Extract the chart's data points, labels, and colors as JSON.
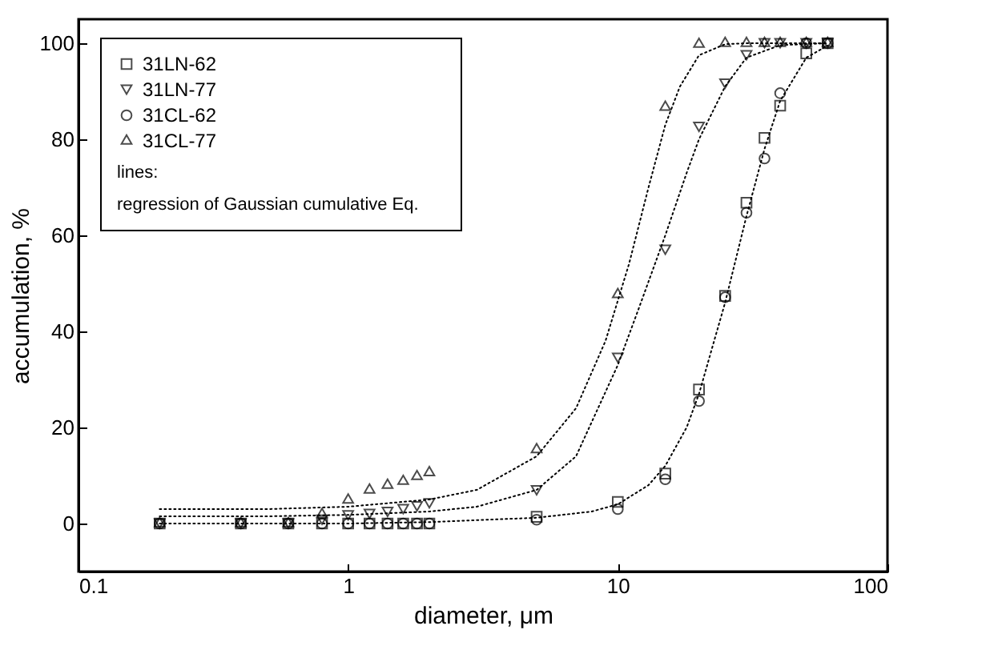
{
  "chart_data": {
    "type": "scatter",
    "xlabel": "diameter, μm",
    "ylabel": "accumulation, %",
    "log": "x",
    "xlim": [
      0.1,
      100
    ],
    "xticks": [
      0.1,
      1,
      10,
      100
    ],
    "ylim": [
      -10,
      105
    ],
    "yticks": [
      0,
      20,
      40,
      60,
      80,
      100
    ],
    "grid": false,
    "legend": "top left",
    "annotations": [
      "lines:",
      "regression of Gaussian cumulative Eq."
    ],
    "series": [
      {
        "name": "31LN-62",
        "color": "#000000",
        "marker": "square",
        "x": [
          0.2,
          0.4,
          0.6,
          0.8,
          1,
          1.2,
          1.4,
          1.6,
          1.8,
          2,
          5,
          10,
          15,
          20,
          25,
          30,
          35,
          40,
          50,
          60
        ],
        "values": [
          0,
          0,
          0,
          0,
          0,
          0,
          0,
          0,
          0,
          0,
          1.4,
          4.5,
          10.4,
          27.9,
          47.4,
          66.8,
          80.3,
          87,
          97.9,
          100
        ]
      },
      {
        "name": "31LN-77",
        "color": "#000000",
        "marker": "triangle-down",
        "x": [
          0.2,
          0.4,
          0.6,
          0.8,
          1,
          1.2,
          1.4,
          1.6,
          1.8,
          2,
          5,
          10,
          15,
          20,
          25,
          30,
          35,
          40,
          50,
          60
        ],
        "values": [
          0,
          0,
          0,
          0.8,
          1.7,
          2,
          2.4,
          3,
          3.6,
          4.2,
          6.9,
          34.5,
          57,
          82.6,
          91.6,
          97.5,
          100,
          100,
          100,
          100
        ]
      },
      {
        "name": "31CL-62",
        "color": "#000000",
        "marker": "circle",
        "x": [
          0.2,
          0.4,
          0.6,
          0.8,
          1,
          1.2,
          1.4,
          1.6,
          1.8,
          2,
          5,
          10,
          15,
          20,
          25,
          30,
          35,
          40,
          50,
          60
        ],
        "values": [
          0,
          0,
          0,
          0,
          0,
          0,
          0,
          0,
          0,
          0,
          0.8,
          3,
          9.2,
          25.5,
          47.1,
          64.7,
          76,
          89.6,
          100,
          100
        ]
      },
      {
        "name": "31CL-77",
        "color": "#000000",
        "marker": "triangle",
        "x": [
          0.2,
          0.4,
          0.6,
          0.8,
          1,
          1.2,
          1.4,
          1.6,
          1.8,
          2,
          5,
          10,
          15,
          20,
          25,
          30,
          35,
          40,
          50,
          60
        ],
        "values": [
          0,
          0,
          0,
          1.9,
          4.9,
          7,
          8,
          8.8,
          9.8,
          10.6,
          15.4,
          47.7,
          86.7,
          99.8,
          100,
          100,
          100,
          100,
          100,
          100
        ]
      },
      {
        "type": "line",
        "color": "#000000",
        "line_style": "dotted",
        "x": [
          0.2,
          0.5,
          1,
          2,
          3,
          5,
          7,
          9,
          11,
          13,
          15,
          17,
          20,
          25,
          30,
          40,
          60
        ],
        "values": [
          3,
          3,
          3.5,
          5,
          7,
          14,
          24,
          38,
          54,
          70,
          83,
          91,
          97.5,
          99.8,
          100,
          100,
          100
        ]
      },
      {
        "type": "line",
        "color": "#000000",
        "line_style": "dotted",
        "x": [
          0.2,
          0.5,
          1,
          2,
          3,
          5,
          7,
          10,
          12,
          15,
          18,
          20,
          25,
          30,
          40,
          60
        ],
        "values": [
          1.5,
          1.5,
          1.8,
          2.5,
          3.5,
          7,
          14,
          33,
          45,
          60,
          73,
          80,
          91,
          97,
          99.6,
          100
        ]
      },
      {
        "type": "line",
        "color": "#000000",
        "line_style": "dotted",
        "x": [
          0.2,
          0.5,
          1,
          2,
          5,
          8,
          10,
          13,
          15,
          18,
          20,
          25,
          30,
          35,
          40,
          50,
          60
        ],
        "values": [
          0,
          0,
          0,
          0.3,
          1.2,
          2.5,
          4,
          8,
          12,
          20,
          27,
          46,
          64,
          78,
          88,
          97,
          99.5
        ]
      }
    ]
  }
}
